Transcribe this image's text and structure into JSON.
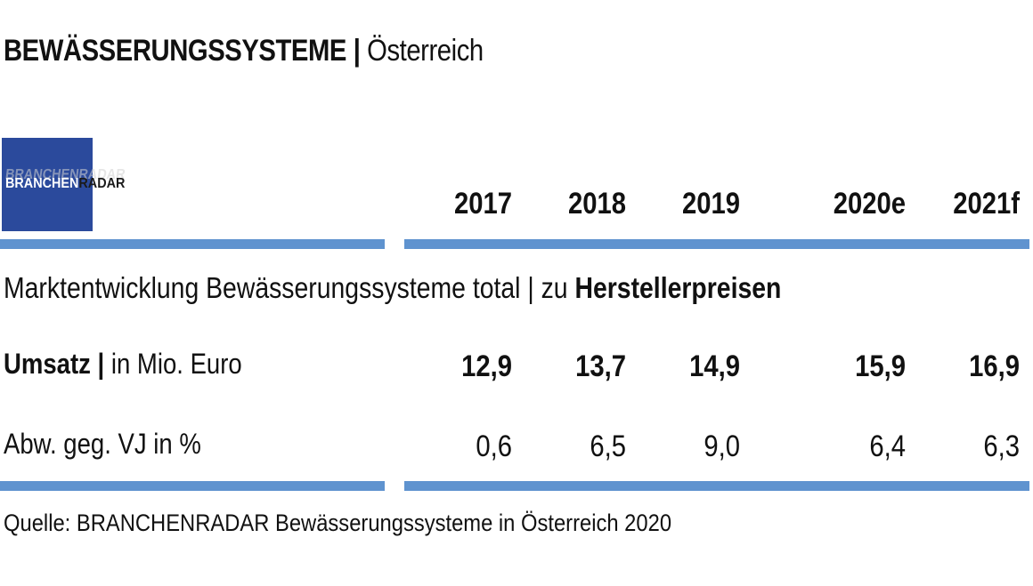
{
  "header": {
    "title_bold": "BEWÄSSERUNGSSYSTEME |",
    "title_normal": "Österreich"
  },
  "logo": {
    "part1": "BRANCHEN",
    "part2": "RADAR",
    "bg_color": "#2b4a9c"
  },
  "accent_color": "#5f93cf",
  "chart_data": {
    "type": "table",
    "title": "BEWÄSSERUNGSSYSTEME | Österreich",
    "subtitle": "Marktentwicklung Bewässerungssysteme total | zu Herstellerpreisen",
    "subtitle_normal": "Marktentwicklung Bewässerungssysteme total | zu",
    "subtitle_bold": "Herstellerpreisen",
    "columns": [
      "2017",
      "2018",
      "2019",
      "2020e",
      "2021f"
    ],
    "rows": [
      {
        "label_bold": "Umsatz |",
        "label_normal": "in Mio. Euro",
        "values": [
          "12,9",
          "13,7",
          "14,9",
          "15,9",
          "16,9"
        ]
      },
      {
        "label_bold": "",
        "label_normal": "Abw. geg. VJ in %",
        "values": [
          "0,6",
          "6,5",
          "9,0",
          "6,4",
          "6,3"
        ]
      }
    ],
    "source": "Quelle: BRANCHENRADAR Bewässerungssysteme in Österreich 2020"
  }
}
